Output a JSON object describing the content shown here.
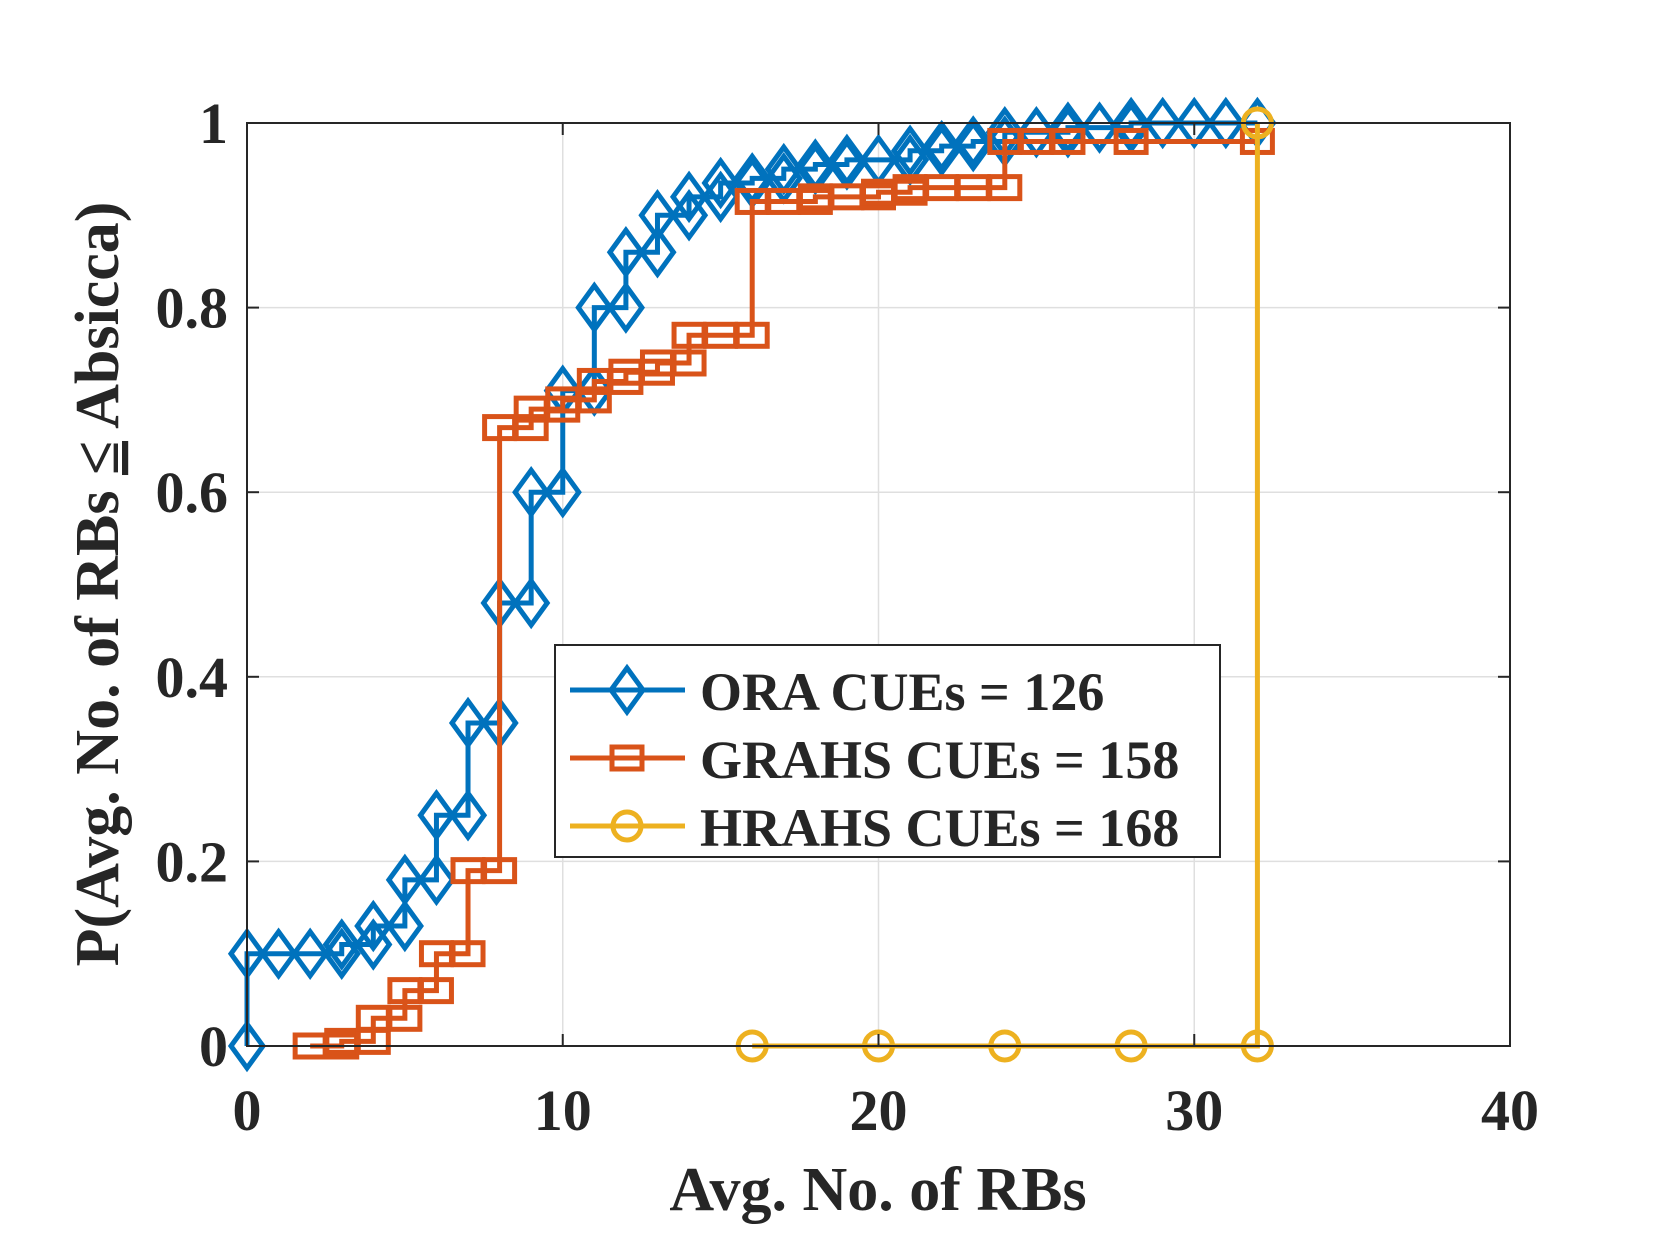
{
  "chart_data": {
    "type": "line",
    "title": "",
    "xlabel": "Avg. No. of RBs",
    "ylabel_prefix": "P(Avg. No. of RBs ",
    "ylabel_symbol": "≤",
    "ylabel_suffix": " Absicca)",
    "xlim": [
      0,
      40
    ],
    "ylim": [
      0,
      1
    ],
    "xticks": [
      0,
      10,
      20,
      30,
      40
    ],
    "xtick_labels": [
      "0",
      "10",
      "20",
      "30",
      "40"
    ],
    "yticks": [
      0,
      0.2,
      0.4,
      0.6,
      0.8,
      1
    ],
    "ytick_labels": [
      "0",
      "0.2",
      "0.4",
      "0.6",
      "0.8",
      "1"
    ],
    "grid": true,
    "legend_position": "center",
    "series": [
      {
        "name": "ORA CUEs = 126",
        "color": "#0072BD",
        "marker": "diamond",
        "points": [
          [
            0,
            0
          ],
          [
            0,
            0.1
          ],
          [
            1,
            0.1
          ],
          [
            2,
            0.1
          ],
          [
            3,
            0.1
          ],
          [
            3,
            0.11
          ],
          [
            4,
            0.11
          ],
          [
            4,
            0.13
          ],
          [
            5,
            0.13
          ],
          [
            5,
            0.18
          ],
          [
            6,
            0.18
          ],
          [
            6,
            0.25
          ],
          [
            7,
            0.25
          ],
          [
            7,
            0.35
          ],
          [
            8,
            0.35
          ],
          [
            8,
            0.48
          ],
          [
            9,
            0.48
          ],
          [
            9,
            0.6
          ],
          [
            10,
            0.6
          ],
          [
            10,
            0.71
          ],
          [
            11,
            0.71
          ],
          [
            11,
            0.8
          ],
          [
            12,
            0.8
          ],
          [
            12,
            0.86
          ],
          [
            13,
            0.86
          ],
          [
            13,
            0.9
          ],
          [
            14,
            0.9
          ],
          [
            14,
            0.92
          ],
          [
            15,
            0.92
          ],
          [
            15,
            0.935
          ],
          [
            16,
            0.935
          ],
          [
            16,
            0.94
          ],
          [
            17,
            0.94
          ],
          [
            17,
            0.95
          ],
          [
            18,
            0.95
          ],
          [
            18,
            0.955
          ],
          [
            19,
            0.955
          ],
          [
            19,
            0.96
          ],
          [
            20,
            0.96
          ],
          [
            21,
            0.96
          ],
          [
            21,
            0.97
          ],
          [
            22,
            0.97
          ],
          [
            22,
            0.975
          ],
          [
            23,
            0.975
          ],
          [
            23,
            0.98
          ],
          [
            24,
            0.98
          ],
          [
            24,
            0.99
          ],
          [
            25,
            0.99
          ],
          [
            26,
            0.99
          ],
          [
            26,
            0.995
          ],
          [
            27,
            0.995
          ],
          [
            28,
            0.995
          ],
          [
            28,
            1
          ],
          [
            29,
            1
          ],
          [
            30,
            1
          ],
          [
            31,
            1
          ],
          [
            32,
            1
          ]
        ]
      },
      {
        "name": "GRAHS CUEs = 158",
        "color": "#D95319",
        "marker": "square",
        "points": [
          [
            2,
            0
          ],
          [
            3,
            0
          ],
          [
            3,
            0.005
          ],
          [
            4,
            0.005
          ],
          [
            4,
            0.03
          ],
          [
            5,
            0.03
          ],
          [
            5,
            0.06
          ],
          [
            6,
            0.06
          ],
          [
            6,
            0.1
          ],
          [
            7,
            0.1
          ],
          [
            7,
            0.19
          ],
          [
            8,
            0.19
          ],
          [
            8,
            0.67
          ],
          [
            9,
            0.67
          ],
          [
            9,
            0.69
          ],
          [
            10,
            0.69
          ],
          [
            10,
            0.7
          ],
          [
            11,
            0.7
          ],
          [
            11,
            0.72
          ],
          [
            12,
            0.72
          ],
          [
            12,
            0.73
          ],
          [
            13,
            0.73
          ],
          [
            13,
            0.74
          ],
          [
            14,
            0.74
          ],
          [
            14,
            0.77
          ],
          [
            15,
            0.77
          ],
          [
            16,
            0.77
          ],
          [
            16,
            0.915
          ],
          [
            17,
            0.915
          ],
          [
            18,
            0.915
          ],
          [
            18,
            0.92
          ],
          [
            19,
            0.92
          ],
          [
            20,
            0.92
          ],
          [
            20,
            0.925
          ],
          [
            21,
            0.925
          ],
          [
            21,
            0.93
          ],
          [
            22,
            0.93
          ],
          [
            23,
            0.93
          ],
          [
            24,
            0.93
          ],
          [
            24,
            0.98
          ],
          [
            25,
            0.98
          ],
          [
            26,
            0.98
          ],
          [
            28,
            0.98
          ],
          [
            32,
            0.98
          ]
        ]
      },
      {
        "name": "HRAHS CUEs = 168",
        "color": "#EDB120",
        "marker": "circle",
        "points": [
          [
            16,
            0
          ],
          [
            20,
            0
          ],
          [
            24,
            0
          ],
          [
            28,
            0
          ],
          [
            32,
            0
          ],
          [
            32,
            1
          ]
        ]
      }
    ]
  }
}
